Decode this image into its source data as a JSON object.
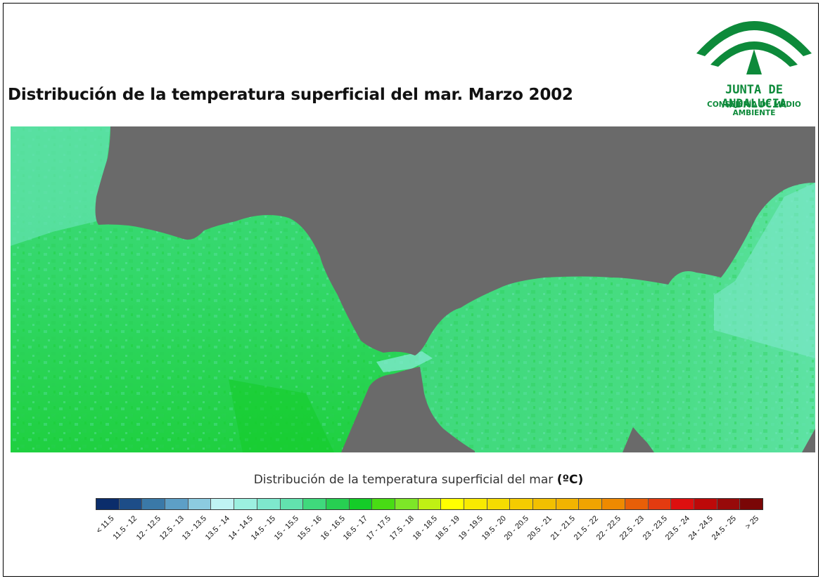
{
  "title": "Distribución de la temperatura superficial del mar. Marzo 2002",
  "logo": {
    "name": "JUNTA DE ANDALUCIA",
    "subtitle": "CONSEJERÍA DE MEDIO AMBIENTE",
    "color": "#0d8a3a"
  },
  "map": {
    "land_color": "#6a6a6a",
    "dominant_classes_west": [
      "16 - 16.5",
      "16.5 - 17"
    ],
    "dominant_classes_east": [
      "15 - 15.5",
      "15.5 - 16"
    ]
  },
  "legend": {
    "title": "Distribución de la temperatura superficial del mar",
    "unit": "(ºC)",
    "classes": [
      {
        "label": "< 11.5",
        "color": "#0b2d6b"
      },
      {
        "label": "11.5 - 12",
        "color": "#1d4d88"
      },
      {
        "label": "12 - 12.5",
        "color": "#3a79a8"
      },
      {
        "label": "12.5 - 13",
        "color": "#5d9fc6"
      },
      {
        "label": "13 - 13.5",
        "color": "#8ccbe0"
      },
      {
        "label": "13.5 - 14",
        "color": "#bff4f4"
      },
      {
        "label": "14 - 14.5",
        "color": "#9cf0e0"
      },
      {
        "label": "14.5 - 15",
        "color": "#7ee8cd"
      },
      {
        "label": "15 - 15.5",
        "color": "#62e2ae"
      },
      {
        "label": "15.5 - 16",
        "color": "#3fd97c"
      },
      {
        "label": "16 - 16.5",
        "color": "#27cf52"
      },
      {
        "label": "16.5 - 17",
        "color": "#14cc28"
      },
      {
        "label": "17 - 17.5",
        "color": "#48dc14"
      },
      {
        "label": "17.5 - 18",
        "color": "#7de628"
      },
      {
        "label": "18 - 18.5",
        "color": "#c0f014"
      },
      {
        "label": "18.5 - 19",
        "color": "#ffff00"
      },
      {
        "label": "19 - 19.5",
        "color": "#f8ea00"
      },
      {
        "label": "19.5 - 20",
        "color": "#f5dc00"
      },
      {
        "label": "20 - 20.5",
        "color": "#f5cc00"
      },
      {
        "label": "20.5 - 21",
        "color": "#f2c000"
      },
      {
        "label": "21 - 21.5",
        "color": "#f2b400"
      },
      {
        "label": "21.5 - 22",
        "color": "#f0a400"
      },
      {
        "label": "22 - 22.5",
        "color": "#ee8a00"
      },
      {
        "label": "22.5 - 23",
        "color": "#e85f08"
      },
      {
        "label": "23 - 23.5",
        "color": "#e33b10"
      },
      {
        "label": "23.5 - 24",
        "color": "#dd0f0f"
      },
      {
        "label": "24 - 24.5",
        "color": "#bd0909"
      },
      {
        "label": "24.5 - 25",
        "color": "#980a0a"
      },
      {
        "label": "> 25",
        "color": "#7a0606"
      }
    ]
  }
}
